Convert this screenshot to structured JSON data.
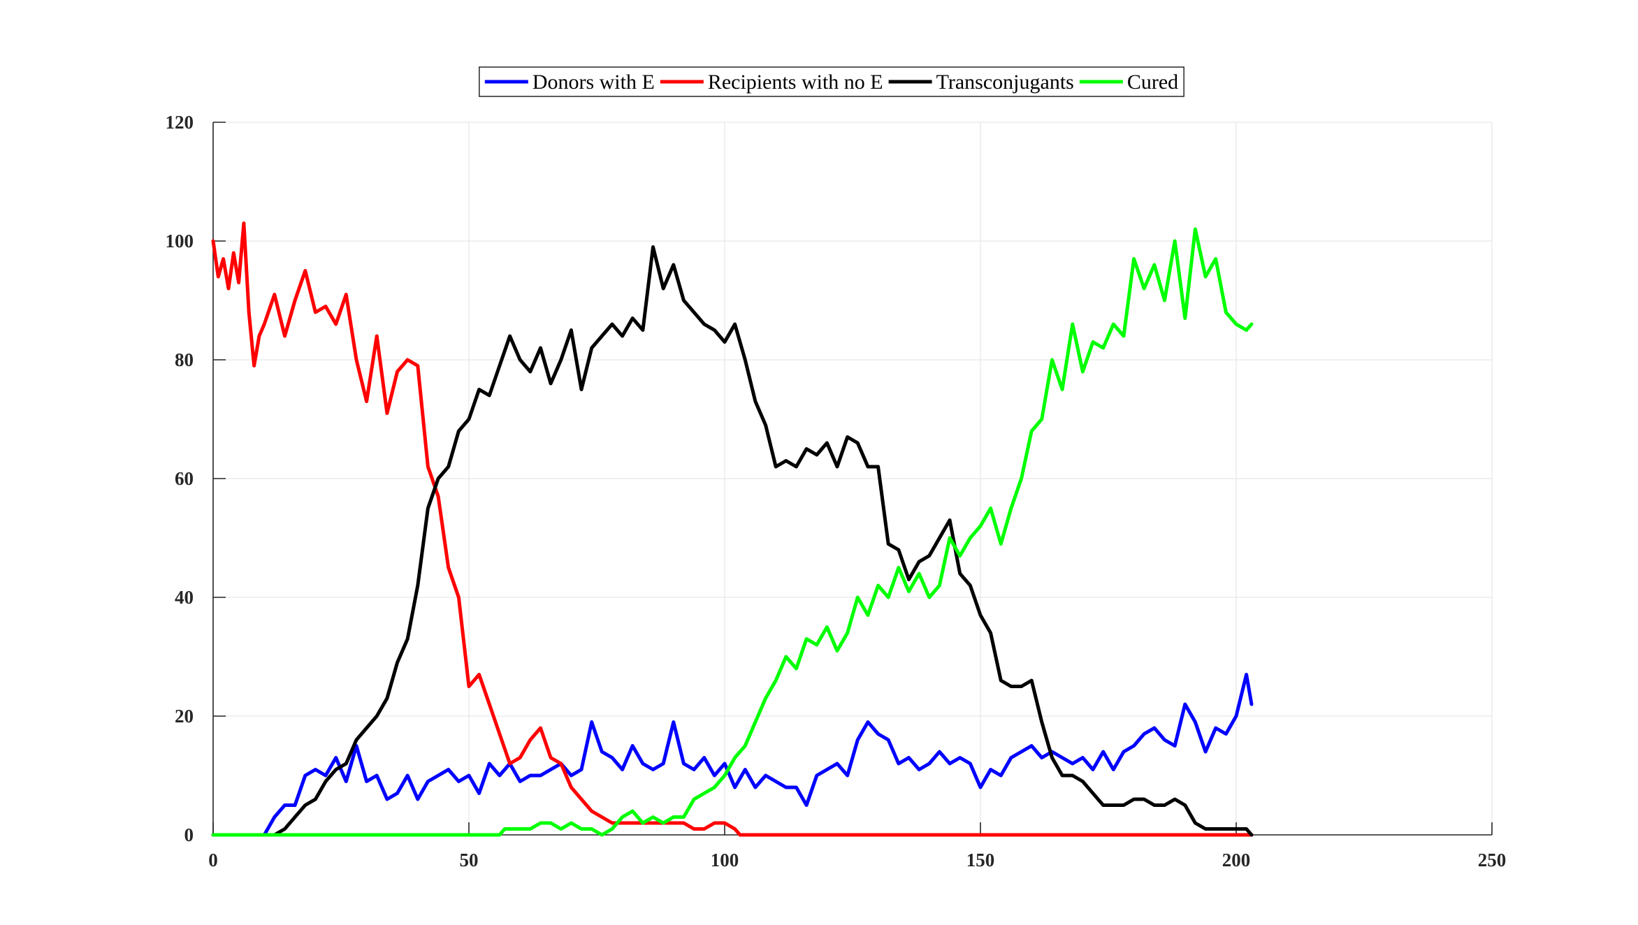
{
  "chart_data": {
    "type": "line",
    "title": "",
    "xlabel": "",
    "ylabel": "",
    "xlim": [
      0,
      250
    ],
    "ylim": [
      0,
      120
    ],
    "xticks": [
      0,
      50,
      100,
      150,
      200,
      250
    ],
    "yticks": [
      0,
      20,
      40,
      60,
      80,
      100,
      120
    ],
    "xtick_labels": [
      "0",
      "50",
      "100",
      "150",
      "200",
      "250"
    ],
    "ytick_labels": [
      "0",
      "20",
      "40",
      "60",
      "80",
      "100",
      "120"
    ],
    "grid": true,
    "legend_position": "top-center",
    "series": [
      {
        "name": "Donors with E",
        "color": "#0000ff",
        "x": [
          0,
          10,
          12,
          14,
          16,
          18,
          20,
          22,
          24,
          26,
          28,
          30,
          32,
          34,
          36,
          38,
          40,
          42,
          44,
          46,
          48,
          50,
          52,
          54,
          56,
          58,
          60,
          62,
          64,
          66,
          68,
          70,
          72,
          74,
          76,
          78,
          80,
          82,
          84,
          86,
          88,
          90,
          92,
          94,
          96,
          98,
          100,
          102,
          104,
          106,
          108,
          110,
          112,
          114,
          116,
          118,
          120,
          122,
          124,
          126,
          128,
          130,
          132,
          134,
          136,
          138,
          140,
          142,
          144,
          146,
          148,
          150,
          152,
          154,
          156,
          158,
          160,
          162,
          164,
          166,
          168,
          170,
          172,
          174,
          176,
          178,
          180,
          182,
          184,
          186,
          188,
          190,
          192,
          194,
          196,
          198,
          200,
          202,
          203
        ],
        "y": [
          0,
          0,
          3,
          5,
          5,
          10,
          11,
          10,
          13,
          9,
          15,
          9,
          10,
          6,
          7,
          10,
          6,
          9,
          10,
          11,
          9,
          10,
          7,
          12,
          10,
          12,
          9,
          10,
          10,
          11,
          12,
          10,
          11,
          19,
          14,
          13,
          11,
          15,
          12,
          11,
          12,
          19,
          12,
          11,
          13,
          10,
          12,
          8,
          11,
          8,
          10,
          9,
          8,
          8,
          5,
          10,
          11,
          12,
          10,
          16,
          19,
          17,
          16,
          12,
          13,
          11,
          12,
          14,
          12,
          13,
          12,
          8,
          11,
          10,
          13,
          14,
          15,
          13,
          14,
          13,
          12,
          13,
          11,
          14,
          11,
          14,
          15,
          17,
          18,
          16,
          15,
          22,
          19,
          14,
          18,
          17,
          20,
          27,
          22
        ]
      },
      {
        "name": "Recipients with no E",
        "color": "#ff0000",
        "x": [
          0,
          1,
          2,
          3,
          4,
          5,
          6,
          7,
          8,
          9,
          10,
          12,
          14,
          16,
          18,
          20,
          22,
          24,
          26,
          28,
          30,
          32,
          34,
          36,
          38,
          40,
          42,
          44,
          46,
          48,
          50,
          52,
          54,
          56,
          58,
          60,
          62,
          64,
          66,
          68,
          70,
          72,
          74,
          76,
          78,
          80,
          82,
          84,
          86,
          88,
          90,
          92,
          94,
          96,
          98,
          100,
          102,
          103,
          120,
          150,
          200,
          203
        ],
        "y": [
          100,
          94,
          97,
          92,
          98,
          93,
          103,
          88,
          79,
          84,
          86,
          91,
          84,
          90,
          95,
          88,
          89,
          86,
          91,
          80,
          73,
          84,
          71,
          78,
          80,
          79,
          62,
          57,
          45,
          40,
          25,
          27,
          22,
          17,
          12,
          13,
          16,
          18,
          13,
          12,
          8,
          6,
          4,
          3,
          2,
          2,
          2,
          2,
          2,
          2,
          2,
          2,
          1,
          1,
          2,
          2,
          1,
          0,
          0,
          0,
          0,
          0
        ]
      },
      {
        "name": "Transconjugants",
        "color": "#000000",
        "x": [
          0,
          12,
          14,
          16,
          18,
          20,
          22,
          24,
          26,
          28,
          30,
          32,
          34,
          36,
          38,
          40,
          42,
          44,
          46,
          48,
          50,
          52,
          54,
          56,
          58,
          60,
          62,
          64,
          66,
          68,
          70,
          72,
          74,
          76,
          78,
          80,
          82,
          84,
          86,
          88,
          90,
          92,
          94,
          96,
          98,
          100,
          102,
          104,
          106,
          108,
          110,
          112,
          114,
          116,
          118,
          120,
          122,
          124,
          126,
          128,
          130,
          132,
          134,
          136,
          138,
          140,
          142,
          144,
          146,
          148,
          150,
          152,
          154,
          156,
          158,
          160,
          162,
          164,
          166,
          168,
          170,
          172,
          174,
          176,
          178,
          180,
          182,
          184,
          186,
          188,
          190,
          192,
          194,
          196,
          198,
          200,
          202,
          203
        ],
        "y": [
          0,
          0,
          1,
          3,
          5,
          6,
          9,
          11,
          12,
          16,
          18,
          20,
          23,
          29,
          33,
          42,
          55,
          60,
          62,
          68,
          70,
          75,
          74,
          79,
          84,
          80,
          78,
          82,
          76,
          80,
          85,
          75,
          82,
          84,
          86,
          84,
          87,
          85,
          99,
          92,
          96,
          90,
          88,
          86,
          85,
          83,
          86,
          80,
          73,
          69,
          62,
          63,
          62,
          65,
          64,
          66,
          62,
          67,
          66,
          62,
          62,
          49,
          48,
          43,
          46,
          47,
          50,
          53,
          44,
          42,
          37,
          34,
          26,
          25,
          25,
          26,
          19,
          13,
          10,
          10,
          9,
          7,
          5,
          5,
          5,
          6,
          6,
          5,
          5,
          6,
          5,
          2,
          1,
          1,
          1,
          1,
          1,
          0
        ]
      },
      {
        "name": "Cured",
        "color": "#00ff00",
        "x": [
          0,
          56,
          57,
          58,
          60,
          62,
          64,
          66,
          68,
          70,
          72,
          74,
          76,
          78,
          80,
          82,
          84,
          86,
          88,
          90,
          92,
          94,
          96,
          98,
          100,
          102,
          104,
          106,
          108,
          110,
          112,
          114,
          116,
          118,
          120,
          122,
          124,
          126,
          128,
          130,
          132,
          134,
          136,
          138,
          140,
          142,
          144,
          146,
          148,
          150,
          152,
          154,
          156,
          158,
          160,
          162,
          164,
          166,
          168,
          170,
          172,
          174,
          176,
          178,
          180,
          182,
          184,
          186,
          188,
          190,
          192,
          194,
          196,
          198,
          200,
          202,
          203
        ],
        "y": [
          0,
          0,
          1,
          1,
          1,
          1,
          2,
          2,
          1,
          2,
          1,
          1,
          0,
          1,
          3,
          4,
          2,
          3,
          2,
          3,
          3,
          6,
          7,
          8,
          10,
          13,
          15,
          19,
          23,
          26,
          30,
          28,
          33,
          32,
          35,
          31,
          34,
          40,
          37,
          42,
          40,
          45,
          41,
          44,
          40,
          42,
          50,
          47,
          50,
          52,
          55,
          49,
          55,
          60,
          68,
          70,
          80,
          75,
          86,
          78,
          83,
          82,
          86,
          84,
          97,
          92,
          96,
          90,
          100,
          87,
          102,
          94,
          97,
          88,
          86,
          85,
          86
        ]
      }
    ]
  }
}
